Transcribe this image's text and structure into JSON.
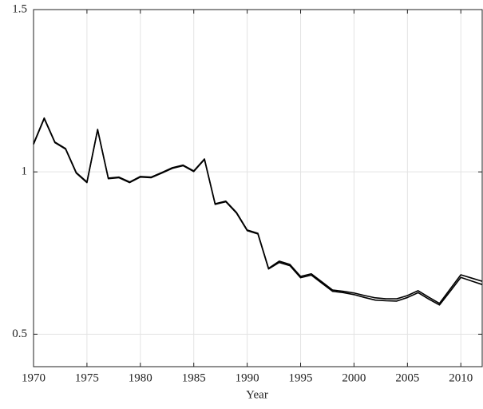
{
  "chart_data": {
    "type": "line",
    "x_label": "Year",
    "x": [
      1970,
      1971,
      1972,
      1973,
      1974,
      1975,
      1976,
      1977,
      1978,
      1979,
      1980,
      1981,
      1982,
      1983,
      1984,
      1985,
      1986,
      1987,
      1988,
      1989,
      1990,
      1991,
      1992,
      1993,
      1994,
      1995,
      1996,
      1997,
      1998,
      1999,
      2000,
      2001,
      2002,
      2003,
      2004,
      2005,
      2006,
      2007,
      2008,
      2009,
      2010,
      2011,
      2012
    ],
    "series": [
      {
        "color": "#000000",
        "values": [
          1.087,
          1.166,
          1.092,
          1.072,
          0.998,
          0.969,
          1.131,
          0.981,
          0.984,
          0.969,
          0.986,
          0.984,
          0.998,
          1.013,
          1.021,
          1.003,
          1.04,
          0.902,
          0.91,
          0.875,
          0.821,
          0.811,
          0.703,
          0.725,
          0.715,
          0.678,
          0.686,
          0.661,
          0.636,
          0.632,
          0.627,
          0.619,
          0.612,
          0.609,
          0.609,
          0.619,
          0.634,
          0.614,
          0.595,
          0.639,
          0.683,
          0.673,
          0.663
        ]
      },
      {
        "color": "#000000",
        "values": [
          1.085,
          1.164,
          1.09,
          1.07,
          0.996,
          0.967,
          1.129,
          0.979,
          0.982,
          0.967,
          0.984,
          0.982,
          0.996,
          1.011,
          1.019,
          1.001,
          1.038,
          0.9,
          0.908,
          0.873,
          0.819,
          0.809,
          0.701,
          0.721,
          0.711,
          0.674,
          0.682,
          0.657,
          0.632,
          0.628,
          0.622,
          0.613,
          0.605,
          0.603,
          0.602,
          0.613,
          0.628,
          0.608,
          0.59,
          0.632,
          0.675,
          0.664,
          0.653
        ]
      }
    ],
    "xlim": [
      1970,
      2012
    ],
    "xticks": [
      1970,
      1975,
      1980,
      1985,
      1990,
      1995,
      2000,
      2005,
      2010
    ],
    "ylim": [
      0.4,
      1.5
    ],
    "yticks": [
      0.5,
      1,
      1.5
    ],
    "grid": true
  }
}
